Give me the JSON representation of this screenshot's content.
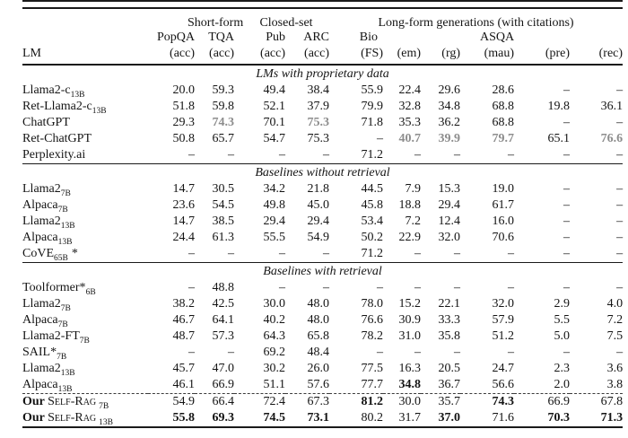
{
  "figure": {
    "type": "paper-results-table"
  },
  "colors": {
    "text": "#141414",
    "rule": "#1a1a1a",
    "gray_highlight": "#8d8d8d",
    "background": "#ffffff"
  },
  "header": {
    "lm_label": "LM",
    "groups": [
      {
        "label": "Short-form",
        "span": 2
      },
      {
        "label": "Closed-set",
        "span": 2
      },
      {
        "label": "Long-form generations (with citations)",
        "span": 6
      }
    ],
    "dataset_row": [
      "PopQA",
      "TQA",
      "Pub",
      "ARC",
      "Bio",
      "",
      "",
      "ASQA",
      "",
      ""
    ],
    "metric_row": [
      "(acc)",
      "(acc)",
      "(acc)",
      "(acc)",
      "(FS)",
      "(em)",
      "(rg)",
      "(mau)",
      "(pre)",
      "(rec)"
    ]
  },
  "missing_marker": "–",
  "sections": [
    {
      "title": "LMs with proprietary data",
      "rows": [
        {
          "name": "Llama2-c",
          "sub": "13B",
          "values": [
            "20.0",
            "59.3",
            "49.4",
            "38.4",
            "55.9",
            "22.4",
            "29.6",
            "28.6",
            "–",
            "–"
          ],
          "styles": [
            "p",
            "p",
            "p",
            "p",
            "p",
            "p",
            "p",
            "p",
            "p",
            "p"
          ]
        },
        {
          "name": "Ret-Llama2-c",
          "sub": "13B",
          "values": [
            "51.8",
            "59.8",
            "52.1",
            "37.9",
            "79.9",
            "32.8",
            "34.8",
            "68.8",
            "19.8",
            "36.1"
          ],
          "styles": [
            "p",
            "p",
            "p",
            "p",
            "p",
            "p",
            "p",
            "p",
            "p",
            "p"
          ]
        },
        {
          "name": "ChatGPT",
          "sub": "",
          "values": [
            "29.3",
            "74.3",
            "70.1",
            "75.3",
            "71.8",
            "35.3",
            "36.2",
            "68.8",
            "–",
            "–"
          ],
          "styles": [
            "p",
            "g",
            "p",
            "g",
            "p",
            "p",
            "p",
            "p",
            "p",
            "p"
          ]
        },
        {
          "name": "Ret-ChatGPT",
          "sub": "",
          "values": [
            "50.8",
            "65.7",
            "54.7",
            "75.3",
            "–",
            "40.7",
            "39.9",
            "79.7",
            "65.1",
            "76.6"
          ],
          "styles": [
            "p",
            "p",
            "p",
            "p",
            "p",
            "g",
            "g",
            "g",
            "p",
            "g"
          ]
        },
        {
          "name": "Perplexity.ai",
          "sub": "",
          "values": [
            "–",
            "–",
            "–",
            "–",
            "71.2",
            "–",
            "–",
            "–",
            "–",
            "–"
          ],
          "styles": [
            "p",
            "p",
            "p",
            "p",
            "p",
            "p",
            "p",
            "p",
            "p",
            "p"
          ]
        }
      ]
    },
    {
      "title": "Baselines without retrieval",
      "rows": [
        {
          "name": "Llama2",
          "sub": "7B",
          "values": [
            "14.7",
            "30.5",
            "34.2",
            "21.8",
            "44.5",
            "7.9",
            "15.3",
            "19.0",
            "–",
            "–"
          ],
          "styles": [
            "p",
            "p",
            "p",
            "p",
            "p",
            "p",
            "p",
            "p",
            "p",
            "p"
          ]
        },
        {
          "name": "Alpaca",
          "sub": "7B",
          "values": [
            "23.6",
            "54.5",
            "49.8",
            "45.0",
            "45.8",
            "18.8",
            "29.4",
            "61.7",
            "–",
            "–"
          ],
          "styles": [
            "p",
            "p",
            "p",
            "p",
            "p",
            "p",
            "p",
            "p",
            "p",
            "p"
          ]
        },
        {
          "name": "Llama2",
          "sub": "13B",
          "values": [
            "14.7",
            "38.5",
            "29.4",
            "29.4",
            "53.4",
            "7.2",
            "12.4",
            "16.0",
            "–",
            "–"
          ],
          "styles": [
            "p",
            "p",
            "p",
            "p",
            "p",
            "p",
            "p",
            "p",
            "p",
            "p"
          ]
        },
        {
          "name": "Alpaca",
          "sub": "13B",
          "values": [
            "24.4",
            "61.3",
            "55.5",
            "54.9",
            "50.2",
            "22.9",
            "32.0",
            "70.6",
            "–",
            "–"
          ],
          "styles": [
            "p",
            "p",
            "p",
            "p",
            "p",
            "p",
            "p",
            "p",
            "p",
            "p"
          ]
        },
        {
          "name": "CoVE",
          "sub": "65B",
          "suffix": "*",
          "values": [
            "–",
            "–",
            "–",
            "–",
            "71.2",
            "–",
            "–",
            "–",
            "–",
            "–"
          ],
          "styles": [
            "p",
            "p",
            "p",
            "p",
            "p",
            "p",
            "p",
            "p",
            "p",
            "p"
          ]
        }
      ]
    },
    {
      "title": "Baselines with retrieval",
      "rows": [
        {
          "name": "Toolformer*",
          "sub": "6B",
          "values": [
            "–",
            "48.8",
            "–",
            "–",
            "–",
            "–",
            "–",
            "–",
            "–",
            "–"
          ],
          "styles": [
            "p",
            "p",
            "p",
            "p",
            "p",
            "p",
            "p",
            "p",
            "p",
            "p"
          ]
        },
        {
          "name": "Llama2",
          "sub": "7B",
          "values": [
            "38.2",
            "42.5",
            "30.0",
            "48.0",
            "78.0",
            "15.2",
            "22.1",
            "32.0",
            "2.9",
            "4.0"
          ],
          "styles": [
            "p",
            "p",
            "p",
            "p",
            "p",
            "p",
            "p",
            "p",
            "p",
            "p"
          ]
        },
        {
          "name": "Alpaca",
          "sub": "7B",
          "values": [
            "46.7",
            "64.1",
            "40.2",
            "48.0",
            "76.6",
            "30.9",
            "33.3",
            "57.9",
            "5.5",
            "7.2"
          ],
          "styles": [
            "p",
            "p",
            "p",
            "p",
            "p",
            "p",
            "p",
            "p",
            "p",
            "p"
          ]
        },
        {
          "name": "Llama2-FT",
          "sub": "7B",
          "values": [
            "48.7",
            "57.3",
            "64.3",
            "65.8",
            "78.2",
            "31.0",
            "35.8",
            "51.2",
            "5.0",
            "7.5"
          ],
          "styles": [
            "p",
            "p",
            "p",
            "p",
            "p",
            "p",
            "p",
            "p",
            "p",
            "p"
          ]
        },
        {
          "name": "SAIL*",
          "sub": "7B",
          "values": [
            "–",
            "–",
            "69.2",
            "48.4",
            "–",
            "–",
            "–",
            "–",
            "–",
            "–"
          ],
          "styles": [
            "p",
            "p",
            "p",
            "p",
            "p",
            "p",
            "p",
            "p",
            "p",
            "p"
          ]
        },
        {
          "name": "Llama2",
          "sub": "13B",
          "values": [
            "45.7",
            "47.0",
            "30.2",
            "26.0",
            "77.5",
            "16.3",
            "20.5",
            "24.7",
            "2.3",
            "3.6"
          ],
          "styles": [
            "p",
            "p",
            "p",
            "p",
            "p",
            "p",
            "p",
            "p",
            "p",
            "p"
          ]
        },
        {
          "name": "Alpaca",
          "sub": "13B",
          "values": [
            "46.1",
            "66.9",
            "51.1",
            "57.6",
            "77.7",
            "34.8",
            "36.7",
            "56.6",
            "2.0",
            "3.8"
          ],
          "styles": [
            "p",
            "p",
            "p",
            "p",
            "p",
            "b",
            "p",
            "p",
            "p",
            "p"
          ]
        },
        {
          "prefix": "Our",
          "name": "Self-Rag",
          "sc": true,
          "sub": "7B",
          "dashed_above": true,
          "values": [
            "54.9",
            "66.4",
            "72.4",
            "67.3",
            "81.2",
            "30.0",
            "35.7",
            "74.3",
            "66.9",
            "67.8"
          ],
          "styles": [
            "p",
            "p",
            "p",
            "p",
            "b",
            "p",
            "p",
            "b",
            "p",
            "p"
          ]
        },
        {
          "prefix": "Our",
          "name": "Self-Rag",
          "sc": true,
          "sub": "13B",
          "values": [
            "55.8",
            "69.3",
            "74.5",
            "73.1",
            "80.2",
            "31.7",
            "37.0",
            "71.6",
            "70.3",
            "71.3"
          ],
          "styles": [
            "b",
            "b",
            "b",
            "b",
            "p",
            "p",
            "b",
            "p",
            "b",
            "b"
          ]
        }
      ]
    }
  ]
}
